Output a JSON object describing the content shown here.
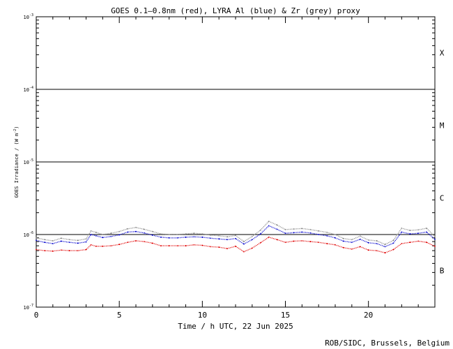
{
  "chart_data": {
    "type": "scatter",
    "title": "GOES 0.1–0.8nm (red), LYRA Al (blue) & Zr (grey) proxy",
    "xlabel": "Time / h UTC, 22 Jun 2025",
    "ylabel": "GOES Irradiance / (W m⁻²)",
    "ylabel_base": "GOES Irradiance / (W m",
    "ylabel_sup": "-2",
    "ylabel_close": ")",
    "credit": "ROB/SIDC, Brussels, Belgium",
    "xlim": [
      0,
      24
    ],
    "ylim": [
      1e-07,
      0.001
    ],
    "yscale": "log",
    "xticks": [
      0,
      5,
      10,
      15,
      20
    ],
    "xtick_labels": [
      "0",
      "5",
      "10",
      "15",
      "20"
    ],
    "yticks": [
      {
        "base": "10",
        "exp": "-7"
      },
      {
        "base": "10",
        "exp": "-6"
      },
      {
        "base": "10",
        "exp": "-5"
      },
      {
        "base": "10",
        "exp": "-4"
      },
      {
        "base": "10",
        "exp": "-3"
      }
    ],
    "flare_class_lines": [
      1e-06,
      1e-05,
      0.0001
    ],
    "flare_classes": [
      {
        "label": "X",
        "value": 0.00032
      },
      {
        "label": "M",
        "value": 3.2e-05
      },
      {
        "label": "C",
        "value": 3.2e-06
      },
      {
        "label": "B",
        "value": 3.2e-07
      }
    ],
    "series": [
      {
        "name": "red",
        "color": "#e00000",
        "x": [
          0,
          0.5,
          1,
          1.5,
          2,
          2.5,
          3,
          3.3,
          3.6,
          4,
          4.5,
          5,
          5.5,
          6,
          6.5,
          7,
          7.5,
          8,
          8.5,
          9,
          9.5,
          10,
          10.5,
          11,
          11.5,
          12,
          12.5,
          13,
          13.5,
          14,
          14.5,
          15,
          15.5,
          16,
          16.5,
          17,
          17.5,
          18,
          18.5,
          19,
          19.5,
          20,
          20.5,
          21,
          21.5,
          22,
          22.5,
          23,
          23.5,
          24
        ],
        "y": [
          6.2e-07,
          6e-07,
          5.9e-07,
          6.1e-07,
          6e-07,
          6e-07,
          6.2e-07,
          7.2e-07,
          6.9e-07,
          6.9e-07,
          7e-07,
          7.3e-07,
          7.8e-07,
          8.2e-07,
          8e-07,
          7.6e-07,
          7e-07,
          7e-07,
          7e-07,
          7e-07,
          7.2e-07,
          7.1e-07,
          6.8e-07,
          6.7e-07,
          6.4e-07,
          6.9e-07,
          5.8e-07,
          6.5e-07,
          7.7e-07,
          9.2e-07,
          8.5e-07,
          7.8e-07,
          8.1e-07,
          8.2e-07,
          8e-07,
          7.8e-07,
          7.5e-07,
          7.2e-07,
          6.6e-07,
          6.3e-07,
          6.8e-07,
          6.1e-07,
          6e-07,
          5.6e-07,
          6.2e-07,
          7.5e-07,
          7.8e-07,
          8.1e-07,
          7.8e-07,
          6.9e-07
        ]
      },
      {
        "name": "blue",
        "color": "#0000cc",
        "x": [
          0,
          0.5,
          1,
          1.5,
          2,
          2.5,
          3,
          3.3,
          3.6,
          4,
          4.5,
          5,
          5.5,
          6,
          6.5,
          7,
          7.5,
          8,
          8.5,
          9,
          9.5,
          10,
          10.5,
          11,
          11.5,
          12,
          12.5,
          13,
          13.5,
          14,
          14.5,
          15,
          15.5,
          16,
          16.5,
          17,
          17.5,
          18,
          18.5,
          19,
          19.5,
          20,
          20.5,
          21,
          21.5,
          22,
          22.5,
          23,
          23.5,
          24
        ],
        "y": [
          8.3e-07,
          7.8e-07,
          7.5e-07,
          8.1e-07,
          7.8e-07,
          7.6e-07,
          7.9e-07,
          1e-06,
          9.6e-07,
          9.1e-07,
          9.4e-07,
          9.9e-07,
          1.08e-06,
          1.1e-06,
          1.05e-06,
          9.8e-07,
          9.2e-07,
          9e-07,
          9e-07,
          9.2e-07,
          9.3e-07,
          9.2e-07,
          8.9e-07,
          8.7e-07,
          8.5e-07,
          8.8e-07,
          7.4e-07,
          8.5e-07,
          1.02e-06,
          1.32e-06,
          1.18e-06,
          1.04e-06,
          1.06e-06,
          1.08e-06,
          1.05e-06,
          1e-06,
          9.6e-07,
          9e-07,
          8.1e-07,
          7.8e-07,
          8.6e-07,
          7.7e-07,
          7.5e-07,
          6.8e-07,
          7.6e-07,
          1.08e-06,
          1.02e-06,
          1.04e-06,
          1.08e-06,
          8.6e-07
        ]
      },
      {
        "name": "grey",
        "color": "#888888",
        "x": [
          0,
          0.5,
          1,
          1.5,
          2,
          2.5,
          3,
          3.3,
          3.6,
          4,
          4.5,
          5,
          5.5,
          6,
          6.5,
          7,
          7.5,
          8,
          8.5,
          9,
          9.5,
          10,
          10.5,
          11,
          11.5,
          12,
          12.5,
          13,
          13.5,
          14,
          14.5,
          15,
          15.5,
          16,
          16.5,
          17,
          17.5,
          18,
          18.5,
          19,
          19.5,
          20,
          20.5,
          21,
          21.5,
          22,
          22.5,
          23,
          23.5,
          24
        ],
        "y": [
          9e-07,
          8.5e-07,
          8.2e-07,
          8.9e-07,
          8.5e-07,
          8.3e-07,
          8.7e-07,
          1.12e-06,
          1.07e-06,
          1e-06,
          1.04e-06,
          1.1e-06,
          1.2e-06,
          1.25e-06,
          1.18e-06,
          1.1e-06,
          1.02e-06,
          1e-06,
          1e-06,
          1.02e-06,
          1.04e-06,
          1.02e-06,
          9.8e-07,
          9.6e-07,
          9.3e-07,
          9.7e-07,
          8e-07,
          9.4e-07,
          1.15e-06,
          1.52e-06,
          1.35e-06,
          1.17e-06,
          1.19e-06,
          1.21e-06,
          1.17e-06,
          1.12e-06,
          1.07e-06,
          1e-06,
          8.8e-07,
          8.5e-07,
          9.5e-07,
          8.4e-07,
          8.2e-07,
          7.3e-07,
          8.3e-07,
          1.22e-06,
          1.14e-06,
          1.16e-06,
          1.22e-06,
          9.4e-07
        ]
      }
    ]
  }
}
